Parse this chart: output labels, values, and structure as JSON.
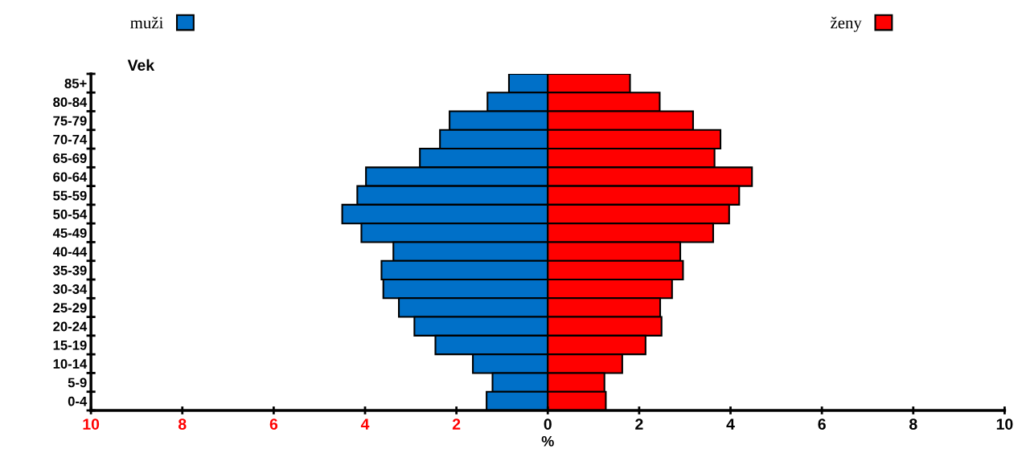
{
  "chart_data": {
    "type": "bar",
    "orientation": "horizontal",
    "ylabel": "Vek",
    "xlabel": "%",
    "categories": [
      "85+",
      "80-84",
      "75-79",
      "70-74",
      "65-69",
      "60-64",
      "55-59",
      "50-54",
      "45-49",
      "40-44",
      "35-39",
      "30-34",
      "25-29",
      "20-24",
      "15-19",
      "10-14",
      "5-9",
      "0-4"
    ],
    "series": [
      {
        "name": "muži",
        "color": "#0070c8",
        "values": [
          -0.85,
          -1.32,
          -2.15,
          -2.36,
          -2.8,
          -3.98,
          -4.17,
          -4.5,
          -4.08,
          -3.38,
          -3.64,
          -3.6,
          -3.26,
          -2.92,
          -2.46,
          -1.64,
          -1.21,
          -1.34
        ]
      },
      {
        "name": "ženy",
        "color": "#ff0000",
        "values": [
          1.8,
          2.45,
          3.18,
          3.78,
          3.65,
          4.47,
          4.19,
          3.97,
          3.62,
          2.9,
          2.96,
          2.72,
          2.46,
          2.49,
          2.14,
          1.63,
          1.24,
          1.27
        ]
      }
    ],
    "xlim": [
      -10,
      10
    ],
    "xticks": [
      {
        "value": -10,
        "label": "10"
      },
      {
        "value": -8,
        "label": "8"
      },
      {
        "value": -6,
        "label": "6"
      },
      {
        "value": -4,
        "label": "4"
      },
      {
        "value": -2,
        "label": "2"
      },
      0,
      2,
      4,
      6,
      8,
      10
    ],
    "legend": "top",
    "grid": false,
    "stacked": true
  }
}
